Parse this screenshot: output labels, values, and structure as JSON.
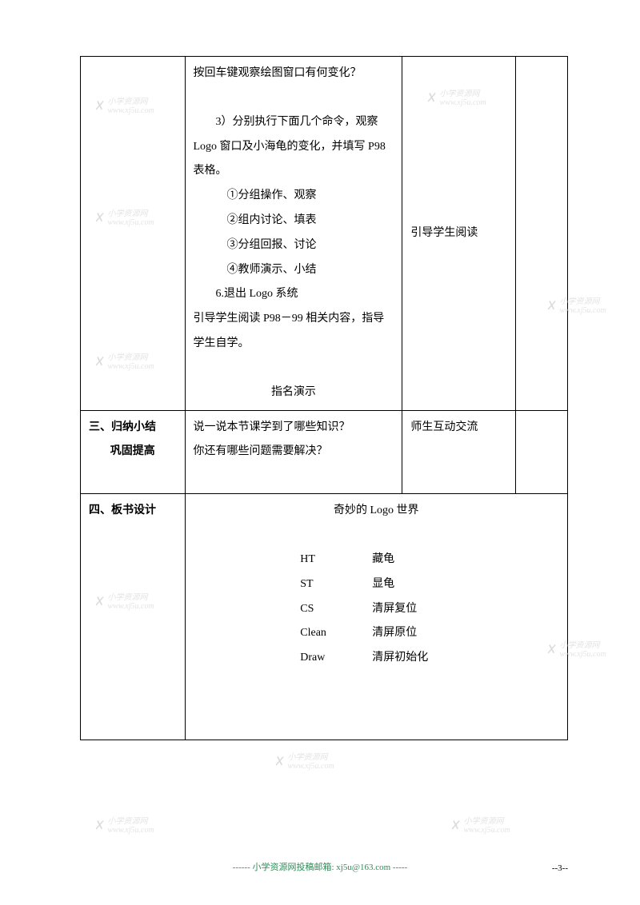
{
  "row1": {
    "col1": "",
    "col2": {
      "line1": "按回车键观察绘图窗口有何变化？",
      "blank": "",
      "line2": "　　3）分别执行下面几个命令，观察 Logo 窗口及小海龟的变化，并填写 P98 表格。",
      "item1": "①分组操作、观察",
      "item2": "②组内讨论、填表",
      "item3": "③分组回报、讨论",
      "item4": "④教师演示、小结",
      "line3": "6.退出 Logo 系统",
      "line4": "引导学生阅读 P98－99 相关内容，指导学生自学。",
      "line5": "指名演示"
    },
    "col3": "引导学生阅读",
    "col4": ""
  },
  "row2": {
    "col1a": "三、归纳小结",
    "col1b": "巩固提高",
    "col2a": "说一说本节课学到了哪些知识？",
    "col2b": "你还有哪些问题需要解决？",
    "col3": "师生互动交流",
    "col4": ""
  },
  "row3": {
    "col1": "四、板书设计",
    "title": "奇妙的 Logo 世界",
    "commands": [
      {
        "cmd": "HT",
        "desc": "藏龟"
      },
      {
        "cmd": "ST",
        "desc": "显龟"
      },
      {
        "cmd": "CS",
        "desc": "清屏复位"
      },
      {
        "cmd": "Clean",
        "desc": "清屏原位"
      },
      {
        "cmd": "Draw",
        "desc": "清屏初始化"
      }
    ]
  },
  "footer": "------ 小学资源网投稿邮箱: xj5u@163.com -----",
  "pageNum": "--3--",
  "watermark": {
    "name": "小学资源网",
    "url": "www.xj5u.com"
  }
}
